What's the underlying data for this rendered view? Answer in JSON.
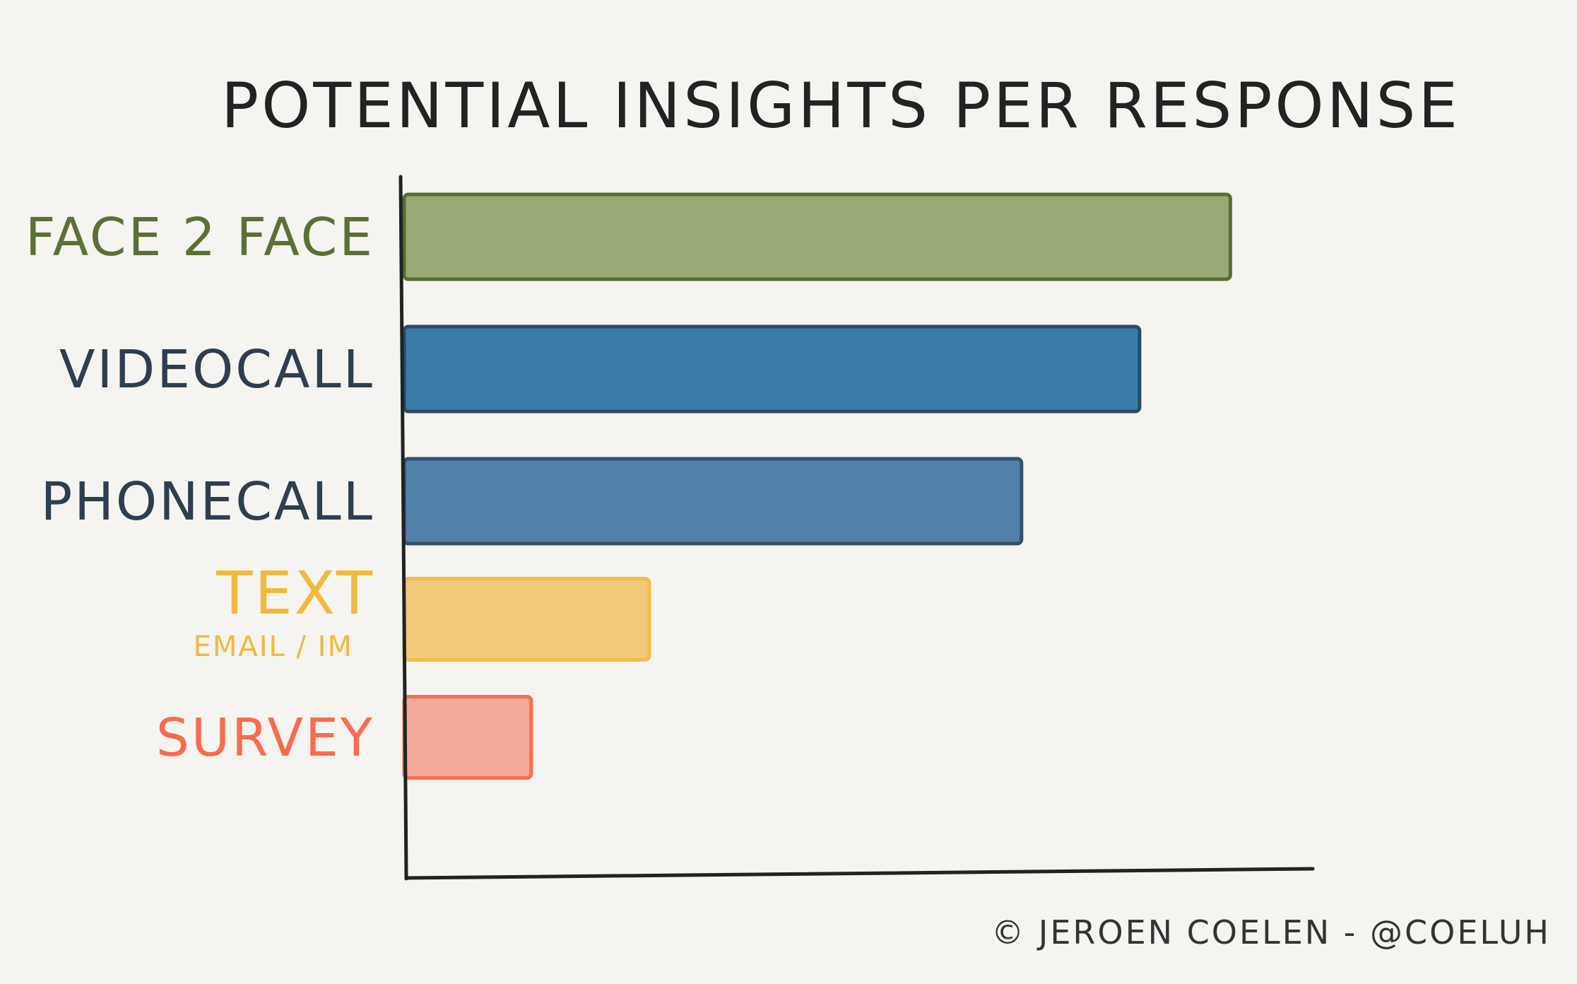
{
  "chart_data": {
    "type": "bar",
    "orientation": "horizontal",
    "title": "POTENTIAL INSIGHTS PER RESPONSE",
    "xlabel": "",
    "ylabel": "",
    "xlim": [
      0,
      100
    ],
    "grid": false,
    "categories": [
      {
        "label": "FACE 2 FACE",
        "sublabel": "",
        "color": "#5a7034",
        "fill": "#99aa77",
        "stroke": "#556e33"
      },
      {
        "label": "VIDEOCALL",
        "sublabel": "",
        "color": "#2e3e4e",
        "fill": "#3a7ca8",
        "stroke": "#2c4a64"
      },
      {
        "label": "PHONECALL",
        "sublabel": "",
        "color": "#2e3e4e",
        "fill": "#5181aa",
        "stroke": "#34506a"
      },
      {
        "label": "TEXT",
        "sublabel": "EMAIL / IM",
        "color": "#f0b93e",
        "fill": "#f0ca78",
        "stroke": "#f0bd45"
      },
      {
        "label": "SURVEY",
        "sublabel": "",
        "color": "#fb6b4f",
        "fill": "#f3a899",
        "stroke": "#fb6b4f"
      }
    ],
    "values": [
      91,
      81,
      68,
      27,
      14
    ]
  },
  "credit": "© JEROEN COELEN - @COELUH",
  "colors": {
    "background": "#f5f4f1",
    "axis": "#222222",
    "text": "#222222"
  }
}
